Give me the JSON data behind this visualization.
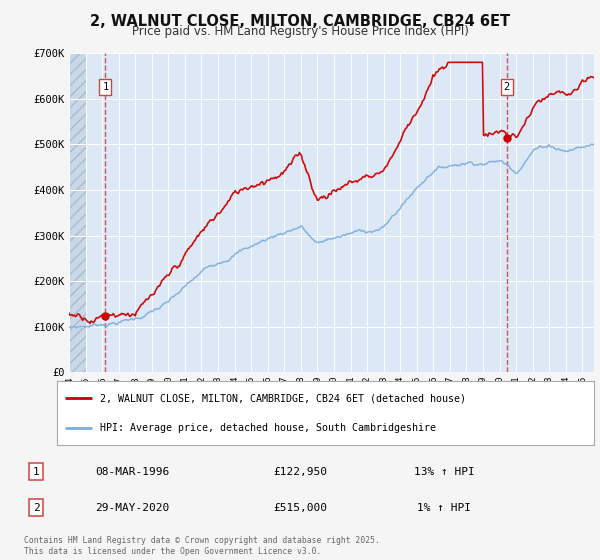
{
  "title": "2, WALNUT CLOSE, MILTON, CAMBRIDGE, CB24 6ET",
  "subtitle": "Price paid vs. HM Land Registry's House Price Index (HPI)",
  "background_color": "#f5f5f5",
  "plot_bg_color": "#dce8f5",
  "hatch_bg_color": "#c8d8e8",
  "grid_color": "#ffffff",
  "ylim": [
    0,
    700000
  ],
  "yticks": [
    0,
    100000,
    200000,
    300000,
    400000,
    500000,
    600000,
    700000
  ],
  "ytick_labels": [
    "£0",
    "£100K",
    "£200K",
    "£300K",
    "£400K",
    "£500K",
    "£600K",
    "£700K"
  ],
  "xmin": 1994.0,
  "xmax": 2025.7,
  "hatch_end": 1995.0,
  "sale1_date": 1996.2,
  "sale1_price": 122950,
  "sale1_label": "1",
  "sale2_date": 2020.42,
  "sale2_price": 515000,
  "sale2_label": "2",
  "legend1_label": "2, WALNUT CLOSE, MILTON, CAMBRIDGE, CB24 6ET (detached house)",
  "legend2_label": "HPI: Average price, detached house, South Cambridgeshire",
  "table_row1": [
    "1",
    "08-MAR-1996",
    "£122,950",
    "13% ↑ HPI"
  ],
  "table_row2": [
    "2",
    "29-MAY-2020",
    "£515,000",
    "1% ↑ HPI"
  ],
  "footer": "Contains HM Land Registry data © Crown copyright and database right 2025.\nThis data is licensed under the Open Government Licence v3.0.",
  "line_red_color": "#cc0000",
  "line_blue_color": "#7aaddc",
  "vline_color": "#cc4444",
  "marker_color": "#cc0000"
}
